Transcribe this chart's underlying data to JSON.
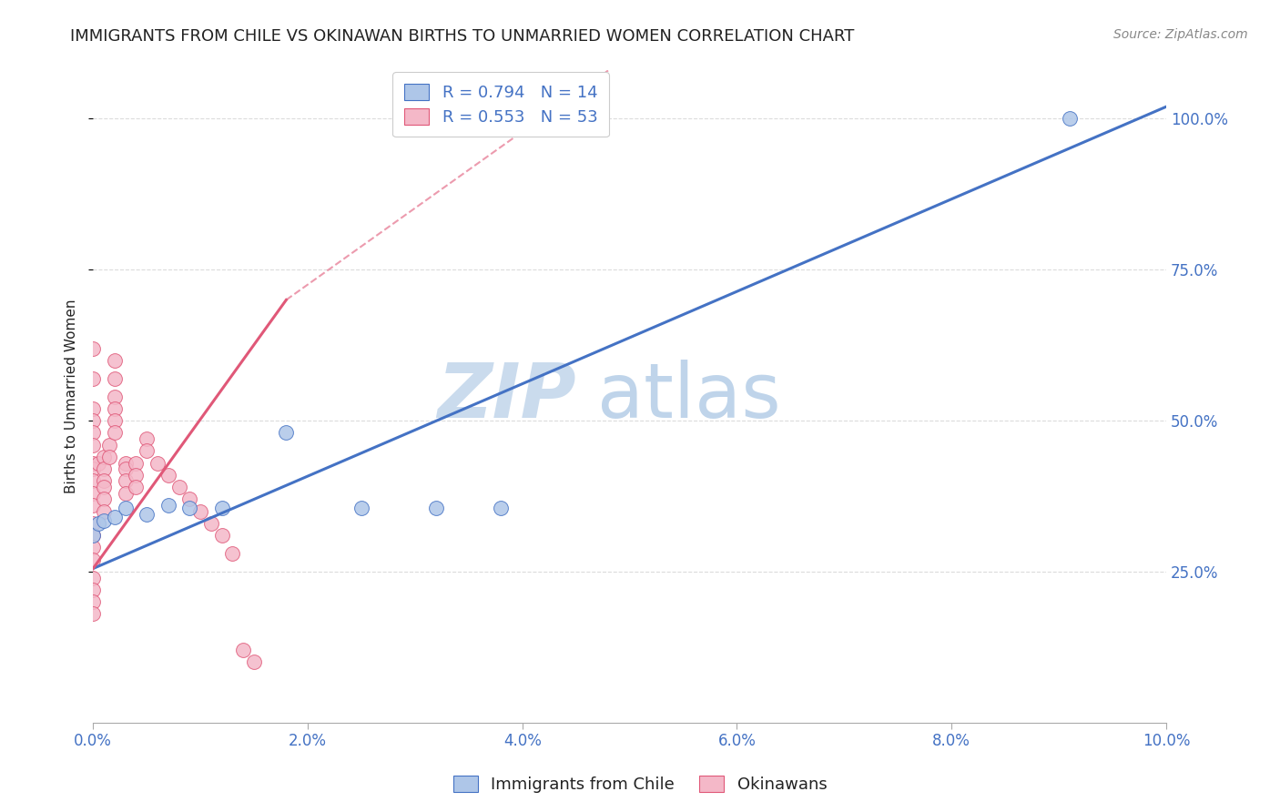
{
  "title": "IMMIGRANTS FROM CHILE VS OKINAWAN BIRTHS TO UNMARRIED WOMEN CORRELATION CHART",
  "source": "Source: ZipAtlas.com",
  "xlabel_blue": "Immigrants from Chile",
  "xlabel_pink": "Okinawans",
  "ylabel": "Births to Unmarried Women",
  "watermark": "ZIPatlas",
  "legend_blue_r": "R = 0.794",
  "legend_blue_n": "N = 14",
  "legend_pink_r": "R = 0.553",
  "legend_pink_n": "N = 53",
  "xlim": [
    0.0,
    0.1
  ],
  "ylim": [
    0.0,
    1.08
  ],
  "xticks": [
    0.0,
    0.02,
    0.04,
    0.06,
    0.08,
    0.1
  ],
  "xtick_labels": [
    "0.0%",
    "2.0%",
    "4.0%",
    "6.0%",
    "8.0%",
    "10.0%"
  ],
  "yticks": [
    0.25,
    0.5,
    0.75,
    1.0
  ],
  "ytick_labels": [
    "25.0%",
    "50.0%",
    "75.0%",
    "100.0%"
  ],
  "blue_color": "#aec6e8",
  "pink_color": "#f4b8c8",
  "blue_line_color": "#4472c4",
  "pink_line_color": "#e05878",
  "blue_scatter": {
    "x": [
      0.0,
      0.0005,
      0.001,
      0.002,
      0.003,
      0.005,
      0.007,
      0.009,
      0.012,
      0.018,
      0.025,
      0.032,
      0.038,
      0.091
    ],
    "y": [
      0.31,
      0.33,
      0.335,
      0.34,
      0.355,
      0.345,
      0.36,
      0.355,
      0.355,
      0.48,
      0.355,
      0.355,
      0.355,
      1.0
    ]
  },
  "pink_scatter": {
    "x": [
      0.0,
      0.0,
      0.0,
      0.0,
      0.0,
      0.0,
      0.0,
      0.0,
      0.0,
      0.0,
      0.0,
      0.0,
      0.0,
      0.0,
      0.0,
      0.0,
      0.0,
      0.0,
      0.0,
      0.0005,
      0.001,
      0.001,
      0.001,
      0.001,
      0.001,
      0.001,
      0.0015,
      0.0015,
      0.002,
      0.002,
      0.002,
      0.002,
      0.002,
      0.002,
      0.003,
      0.003,
      0.003,
      0.003,
      0.004,
      0.004,
      0.004,
      0.005,
      0.005,
      0.006,
      0.007,
      0.008,
      0.009,
      0.01,
      0.011,
      0.012,
      0.013,
      0.014,
      0.015
    ],
    "y": [
      0.62,
      0.57,
      0.52,
      0.5,
      0.48,
      0.46,
      0.43,
      0.42,
      0.4,
      0.38,
      0.36,
      0.33,
      0.31,
      0.29,
      0.27,
      0.24,
      0.22,
      0.2,
      0.18,
      0.43,
      0.44,
      0.42,
      0.4,
      0.39,
      0.37,
      0.35,
      0.46,
      0.44,
      0.6,
      0.57,
      0.54,
      0.52,
      0.5,
      0.48,
      0.43,
      0.42,
      0.4,
      0.38,
      0.43,
      0.41,
      0.39,
      0.47,
      0.45,
      0.43,
      0.41,
      0.39,
      0.37,
      0.35,
      0.33,
      0.31,
      0.28,
      0.12,
      0.1
    ]
  },
  "blue_line": {
    "x0": 0.0,
    "y0": 0.255,
    "x1": 0.1,
    "y1": 1.02
  },
  "pink_line_solid": {
    "x0": 0.0,
    "y0": 0.255,
    "x1": 0.018,
    "y1": 0.7
  },
  "pink_line_dashed": {
    "x0": 0.018,
    "y0": 0.7,
    "x1": 0.048,
    "y1": 1.08
  },
  "grid_color": "#d8d8d8",
  "background_color": "#ffffff",
  "title_color": "#222222",
  "axis_color": "#4472c4",
  "title_fontsize": 13,
  "axis_label_fontsize": 11,
  "tick_fontsize": 12,
  "source_fontsize": 10,
  "watermark_fontsize": 60,
  "watermark_color": "#cce0f5",
  "legend_fontsize": 13
}
